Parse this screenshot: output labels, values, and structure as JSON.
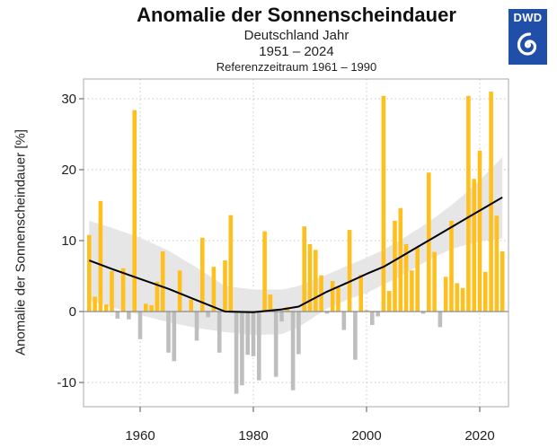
{
  "chart_data": {
    "type": "bar",
    "title": "Anomalie der Sonnenscheindauer",
    "subtitle_region": "Deutschland Jahr",
    "subtitle_period": "1951 – 2024",
    "subtitle_reference": "Referenzzeitraum 1961 – 1990",
    "xlabel": "",
    "ylabel": "Anomalie der Sonnenscheindauer [%]",
    "xlim": [
      1950,
      2025
    ],
    "ylim": [
      -13.5,
      33
    ],
    "x_ticks": [
      1960,
      1980,
      2000,
      2020
    ],
    "x_tick_labels": [
      "1960",
      "1980",
      "2000",
      "2020"
    ],
    "y_ticks": [
      30,
      20,
      10,
      0,
      -10
    ],
    "y_tick_labels": [
      "30",
      "20",
      "10",
      "0",
      "-10"
    ],
    "grid": true,
    "colors": {
      "positive": "#FFC01E",
      "negative": "#BEBEBE",
      "trend": "#000000",
      "band": "#E6E6E6"
    },
    "series": [
      {
        "name": "Anomalie",
        "x": [
          1951,
          1952,
          1953,
          1954,
          1955,
          1956,
          1957,
          1958,
          1959,
          1960,
          1961,
          1962,
          1963,
          1964,
          1965,
          1966,
          1967,
          1968,
          1969,
          1970,
          1971,
          1972,
          1973,
          1974,
          1975,
          1976,
          1977,
          1978,
          1979,
          1980,
          1981,
          1982,
          1983,
          1984,
          1985,
          1986,
          1987,
          1988,
          1989,
          1990,
          1991,
          1992,
          1993,
          1994,
          1995,
          1996,
          1997,
          1998,
          1999,
          2000,
          2001,
          2002,
          2003,
          2004,
          2005,
          2006,
          2007,
          2008,
          2009,
          2010,
          2011,
          2012,
          2013,
          2014,
          2015,
          2016,
          2017,
          2018,
          2019,
          2020,
          2021,
          2022,
          2023,
          2024
        ],
        "values": [
          10.8,
          2.1,
          15.6,
          1.0,
          5.7,
          -1.0,
          6.1,
          -1.1,
          28.4,
          -3.9,
          1.1,
          0.9,
          4.2,
          8.5,
          -5.8,
          -7.0,
          5.8,
          0.1,
          1.7,
          -4.1,
          10.4,
          -0.8,
          6.3,
          -5.8,
          7.2,
          13.6,
          -11.6,
          -10.4,
          -6.1,
          -6.3,
          -9.7,
          11.3,
          2.4,
          -9.2,
          -1.4,
          0.6,
          -11.1,
          -6.0,
          12.0,
          9.5,
          8.7,
          5.1,
          -0.3,
          4.3,
          3.4,
          -2.6,
          11.5,
          -6.8,
          5.2,
          0.2,
          -1.9,
          -0.7,
          30.4,
          2.9,
          12.8,
          14.6,
          9.5,
          5.8,
          9.0,
          -0.3,
          19.6,
          8.4,
          -2.2,
          4.9,
          12.8,
          4.0,
          3.3,
          30.4,
          18.7,
          22.7,
          5.6,
          31.0,
          13.5,
          8.5
        ]
      },
      {
        "name": "Trend (geglättet)",
        "type": "line",
        "x": [
          1951,
          1955,
          1960,
          1965,
          1970,
          1975,
          1980,
          1985,
          1988,
          1993,
          1997,
          2000,
          2003,
          2006,
          2009,
          2012,
          2015,
          2018,
          2021,
          2024
        ],
        "values": [
          7.2,
          6.0,
          4.6,
          3.2,
          1.6,
          0.0,
          -0.1,
          0.3,
          0.7,
          2.8,
          4.2,
          5.3,
          6.3,
          7.7,
          9.1,
          10.5,
          11.9,
          13.3,
          14.7,
          16.1
        ]
      },
      {
        "name": "Konfidenzband",
        "type": "area",
        "x": [
          1951,
          1955,
          1960,
          1965,
          1970,
          1975,
          1980,
          1985,
          1988,
          1993,
          1997,
          2000,
          2003,
          2006,
          2009,
          2012,
          2015,
          2018,
          2021,
          2024
        ],
        "upper": [
          12.8,
          11.8,
          10.4,
          8.6,
          6.2,
          3.6,
          3.1,
          3.1,
          3.6,
          5.2,
          6.6,
          7.6,
          8.7,
          10.1,
          11.6,
          13.2,
          15.0,
          17.0,
          19.3,
          21.8
        ],
        "lower": [
          1.6,
          0.6,
          -0.5,
          -1.5,
          -2.3,
          -2.9,
          -3.3,
          -3.2,
          -2.2,
          0.4,
          1.8,
          2.6,
          3.8,
          5.0,
          6.4,
          7.7,
          8.8,
          9.5,
          10.0,
          10.3
        ]
      }
    ]
  },
  "logo": {
    "text": "DWD",
    "icon": "swirl-icon"
  }
}
